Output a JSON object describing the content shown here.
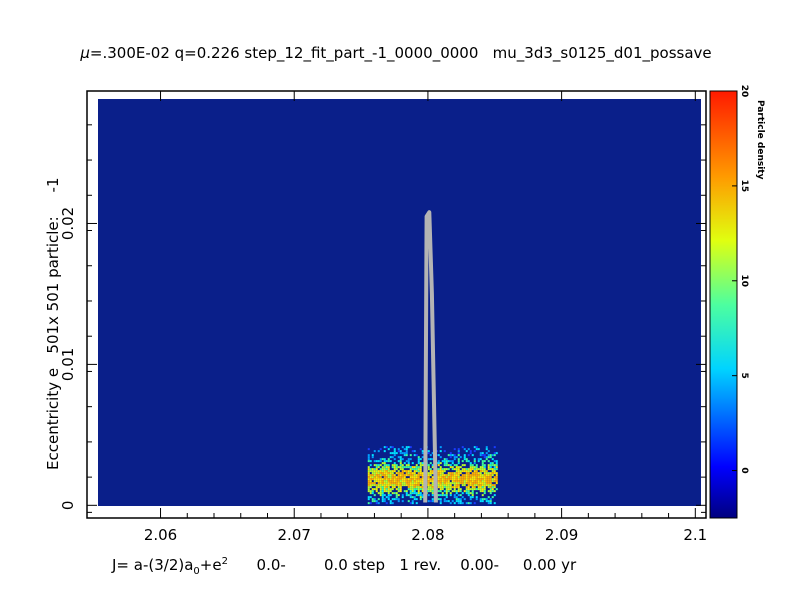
{
  "chart_data": {
    "type": "heatmap",
    "title": "μ=.300E-02 q=0.226 step_12_fit_part_-1_0000_0000   mu_3d3_s0125_d01_possave",
    "title_mu_symbol": "μ",
    "title_rest": "=.300E-02 q=0.226 step_12_fit_part_-1_0000_0000   mu_3d3_s0125_d01_possave",
    "ylabel": "Eccentricity e   501x 501 particle:     -1",
    "xlabel_main": "J= a-(3/2)a",
    "xlabel_sub0": "0",
    "xlabel_mid": "+e",
    "xlabel_sup": "2",
    "xlabel_rest": "      0.0-        0.0 step   1 rev.    0.00-     0.00 yr",
    "x_ticks": [
      "2.06",
      "2.07",
      "2.08",
      "2.09",
      "2.1"
    ],
    "y_ticks": [
      "0",
      "0.01",
      "0.02"
    ],
    "xlim": [
      2.0545,
      2.1008
    ],
    "ylim": [
      -0.0009,
      0.0294
    ],
    "density_region": {
      "x": [
        2.0755,
        2.0852
      ],
      "e": [
        0.0001,
        0.0042
      ]
    },
    "curve": {
      "x": [
        2.0798,
        2.0799,
        2.0801,
        2.0803,
        2.0805,
        2.0806
      ],
      "e": [
        0.0002,
        0.0205,
        0.0208,
        0.015,
        0.005,
        0.0002
      ]
    },
    "colorbar": {
      "label": "Particle density",
      "ticks": [
        "0",
        "5",
        "10",
        "15",
        "20"
      ],
      "range": [
        -2.5,
        20
      ]
    },
    "colors": {
      "background": "#0a1f8a",
      "curve": "#b4b4b4"
    }
  }
}
